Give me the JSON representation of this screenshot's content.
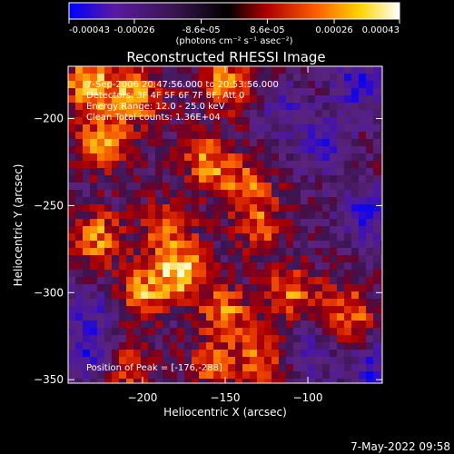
{
  "chart_data": {
    "type": "heatmap",
    "title": "Reconstructed RHESSI Image",
    "xlabel": "Heliocentric X (arcsec)",
    "ylabel": "Heliocentric Y (arcsec)",
    "xlim": [
      -245,
      -55
    ],
    "ylim": [
      -352,
      -170
    ],
    "xticks": [
      -200,
      -150,
      -100
    ],
    "yticks": [
      -200,
      -250,
      -300,
      -350
    ],
    "colorbar": {
      "range": [
        -0.00043,
        0.00043
      ],
      "tick_values": [
        -0.00043,
        -0.00026,
        -8.6e-05,
        8.6e-05,
        0.00026,
        0.00043
      ],
      "tick_labels": [
        "-0.00043",
        "-0.00026",
        "-8.6e-05",
        "8.6e-05",
        "0.00026",
        "0.00043"
      ],
      "units": "(photons cm⁻² s⁻¹ asec⁻²)",
      "colors": [
        "#0000ff",
        "#5a1aa0",
        "#3a1550",
        "#000000",
        "#b00000",
        "#ff6000",
        "#ffd400",
        "#ffffff"
      ]
    },
    "annotations": {
      "time_range": "7-Sep-2006 20:47:56.000 to 20:53:56.000",
      "detectors": "Detectors: 3F 4F 5F 6F 7F 8F, Att 0",
      "energy": "Energy Range: 12.0 - 25.0 keV",
      "clean": "Clean     Total counts: 1.36E+04",
      "peak": "Position of Peak = [-176,-288]"
    },
    "peak": {
      "x": -176,
      "y": -288
    },
    "bright_regions": [
      {
        "x": -232,
        "y": -180,
        "level": 0.95
      },
      {
        "x": -205,
        "y": -188,
        "level": 0.85
      },
      {
        "x": -150,
        "y": -180,
        "level": 0.8
      },
      {
        "x": -225,
        "y": -215,
        "level": 0.85
      },
      {
        "x": -160,
        "y": -225,
        "level": 0.75
      },
      {
        "x": -138,
        "y": -240,
        "level": 0.65
      },
      {
        "x": -128,
        "y": -262,
        "level": 0.55
      },
      {
        "x": -185,
        "y": -262,
        "level": 0.65
      },
      {
        "x": -228,
        "y": -268,
        "level": 0.8
      },
      {
        "x": -176,
        "y": -288,
        "level": 1.0
      },
      {
        "x": -200,
        "y": -300,
        "level": 0.8
      },
      {
        "x": -110,
        "y": -300,
        "level": 0.7
      },
      {
        "x": -150,
        "y": -312,
        "level": 0.75
      },
      {
        "x": -75,
        "y": -312,
        "level": 0.7
      },
      {
        "x": -128,
        "y": -338,
        "level": 0.7
      },
      {
        "x": -158,
        "y": -342,
        "level": 0.55
      },
      {
        "x": -210,
        "y": -345,
        "level": 0.55
      }
    ],
    "dark_regions": [
      {
        "x": -70,
        "y": -180,
        "level": -0.65
      },
      {
        "x": -90,
        "y": -215,
        "level": -0.5
      },
      {
        "x": -65,
        "y": -255,
        "level": -0.6
      },
      {
        "x": -232,
        "y": -312,
        "level": -0.5
      },
      {
        "x": -232,
        "y": -335,
        "level": -0.55
      },
      {
        "x": -60,
        "y": -345,
        "level": -0.6
      },
      {
        "x": -100,
        "y": -335,
        "level": -0.45
      },
      {
        "x": -115,
        "y": -195,
        "level": -0.4
      }
    ]
  },
  "footer": {
    "timestamp": "7-May-2022 09:58"
  }
}
